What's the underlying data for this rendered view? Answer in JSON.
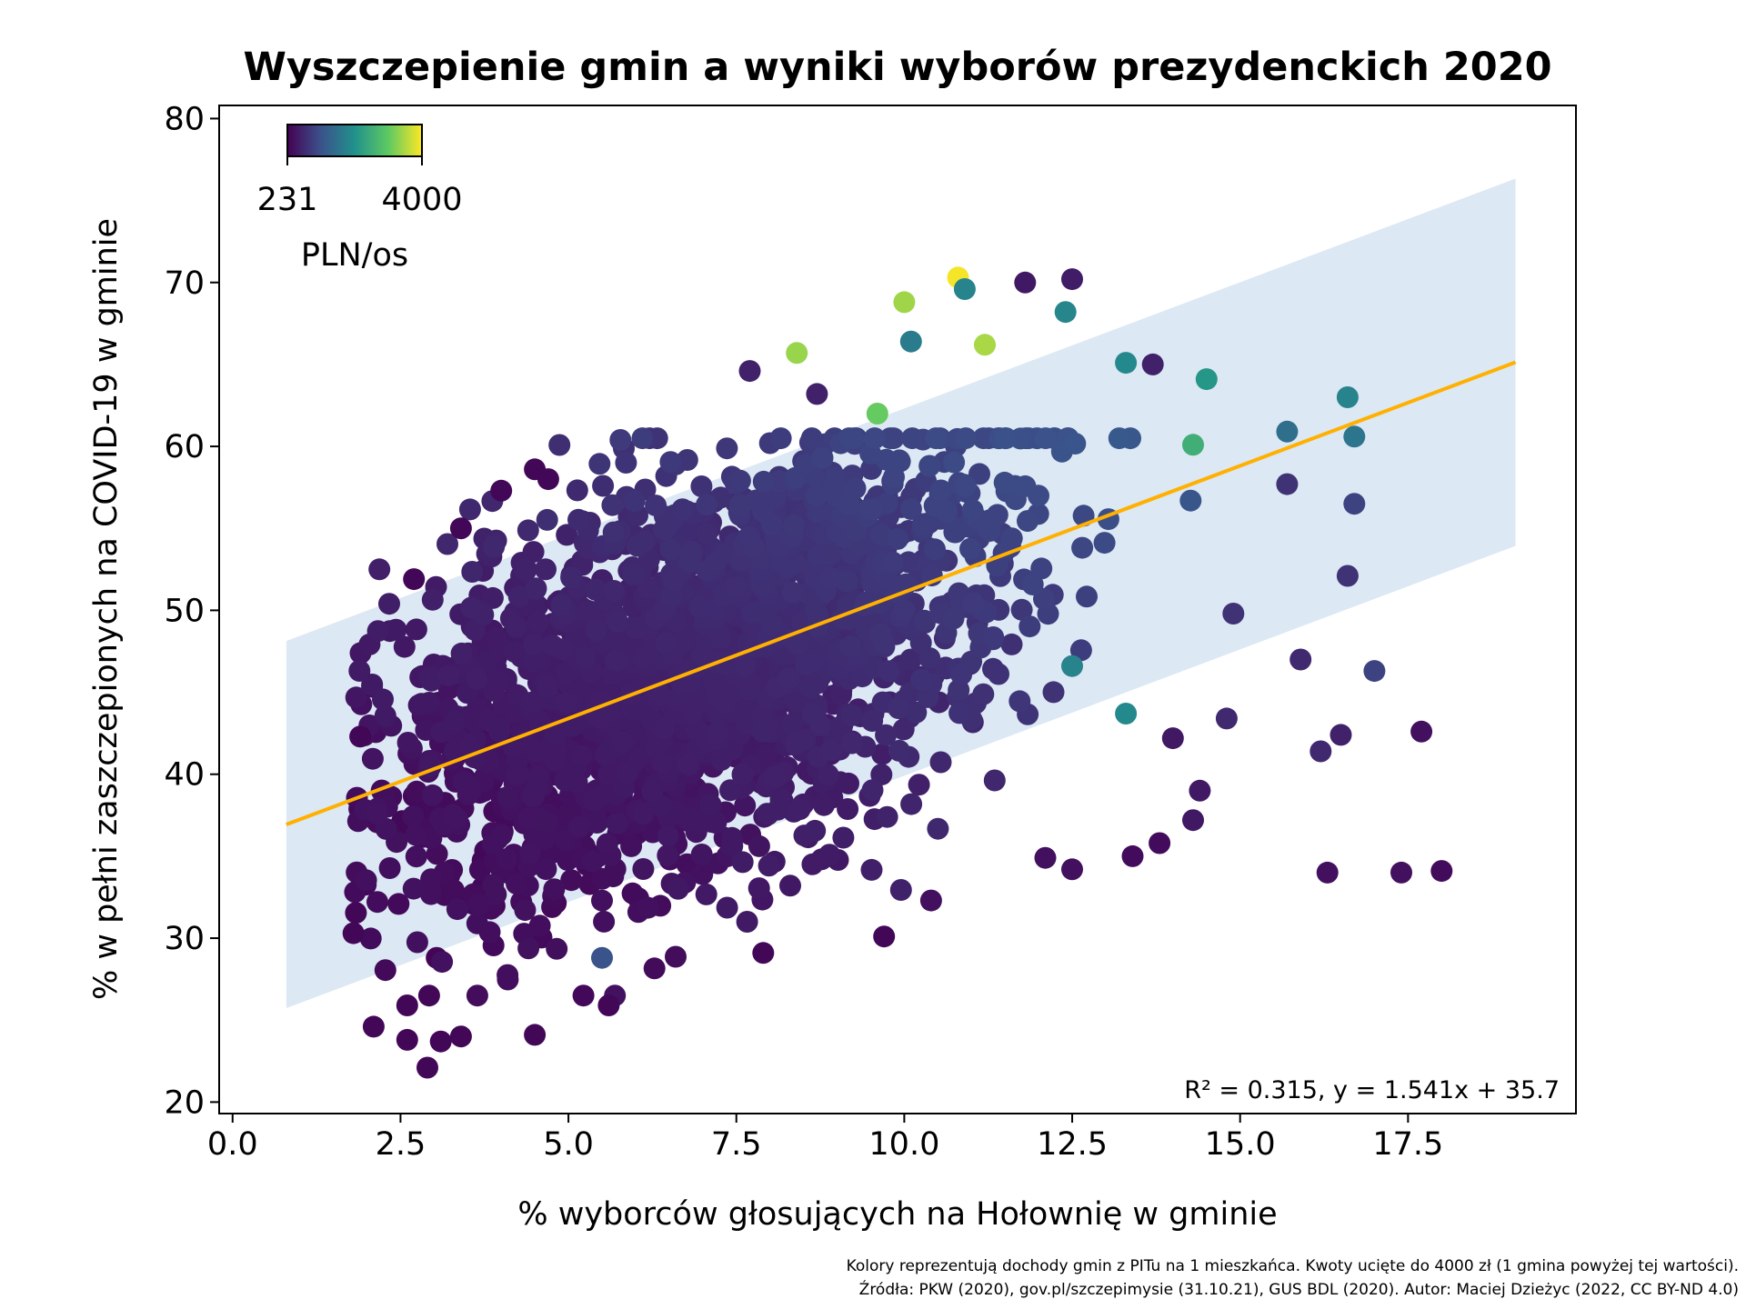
{
  "chart_data": {
    "type": "scatter",
    "title": "Wyszczepienie gmin a wyniki wyborów prezydenckich 2020",
    "xlabel": "% wyborców głosujących na Hołownię w gminie",
    "ylabel": "% w pełni zaszczepionych na COVID-19 w gminie",
    "xlim": [
      -0.2,
      20.0
    ],
    "ylim": [
      19.3,
      80.8
    ],
    "x_ticks": [
      "0.0",
      "2.5",
      "5.0",
      "7.5",
      "10.0",
      "12.5",
      "15.0",
      "17.5"
    ],
    "y_ticks": [
      "20",
      "30",
      "40",
      "50",
      "60",
      "70",
      "80"
    ],
    "grid": false,
    "colorbar": {
      "min_label": "231",
      "max_label": "4000",
      "unit": "PLN/os",
      "min": 231,
      "max": 4000,
      "colormap": "viridis",
      "placement": "top-left"
    },
    "regression": {
      "label": "R² = 0.315, y = 1.541x + 35.7",
      "slope": 1.541,
      "intercept": 35.7,
      "x_range": [
        0.8,
        19.1
      ],
      "band_halfwidth": 11.2,
      "line_color": "#FFB000",
      "band_color": "#DCE8F3"
    },
    "highlighted_points": [
      {
        "x": 10.8,
        "y": 70.3,
        "income": 3950
      },
      {
        "x": 10.0,
        "y": 68.8,
        "income": 3450
      },
      {
        "x": 8.4,
        "y": 65.7,
        "income": 3400
      },
      {
        "x": 11.2,
        "y": 66.2,
        "income": 3500
      },
      {
        "x": 9.6,
        "y": 62.0,
        "income": 3100
      },
      {
        "x": 10.9,
        "y": 69.6,
        "income": 1900
      },
      {
        "x": 10.1,
        "y": 66.4,
        "income": 1800
      },
      {
        "x": 12.4,
        "y": 68.2,
        "income": 1950
      },
      {
        "x": 11.8,
        "y": 70.0,
        "income": 500
      },
      {
        "x": 12.5,
        "y": 70.2,
        "income": 550
      },
      {
        "x": 13.3,
        "y": 65.1,
        "income": 2000
      },
      {
        "x": 13.7,
        "y": 65.0,
        "income": 600
      },
      {
        "x": 14.5,
        "y": 64.1,
        "income": 2200
      },
      {
        "x": 14.3,
        "y": 60.1,
        "income": 2600
      },
      {
        "x": 16.6,
        "y": 63.0,
        "income": 1900
      },
      {
        "x": 16.7,
        "y": 60.6,
        "income": 1700
      },
      {
        "x": 16.7,
        "y": 56.5,
        "income": 1000
      },
      {
        "x": 15.7,
        "y": 60.9,
        "income": 1600
      },
      {
        "x": 15.7,
        "y": 57.7,
        "income": 800
      },
      {
        "x": 16.6,
        "y": 52.1,
        "income": 800
      },
      {
        "x": 17.0,
        "y": 46.3,
        "income": 1000
      },
      {
        "x": 16.2,
        "y": 41.4,
        "income": 700
      },
      {
        "x": 16.5,
        "y": 42.4,
        "income": 600
      },
      {
        "x": 17.7,
        "y": 42.6,
        "income": 400
      },
      {
        "x": 16.3,
        "y": 34.0,
        "income": 400
      },
      {
        "x": 17.4,
        "y": 34.0,
        "income": 400
      },
      {
        "x": 18.0,
        "y": 34.1,
        "income": 350
      },
      {
        "x": 15.9,
        "y": 47.0,
        "income": 700
      },
      {
        "x": 14.9,
        "y": 49.8,
        "income": 800
      },
      {
        "x": 14.8,
        "y": 43.4,
        "income": 700
      },
      {
        "x": 14.3,
        "y": 37.2,
        "income": 500
      },
      {
        "x": 14.4,
        "y": 39.0,
        "income": 500
      },
      {
        "x": 13.8,
        "y": 35.8,
        "income": 350
      },
      {
        "x": 13.4,
        "y": 35.0,
        "income": 350
      },
      {
        "x": 14.0,
        "y": 42.2,
        "income": 500
      },
      {
        "x": 12.5,
        "y": 34.2,
        "income": 400
      },
      {
        "x": 12.1,
        "y": 34.9,
        "income": 400
      },
      {
        "x": 2.7,
        "y": 51.9,
        "income": 300
      },
      {
        "x": 3.4,
        "y": 55.0,
        "income": 300
      },
      {
        "x": 4.0,
        "y": 57.3,
        "income": 300
      },
      {
        "x": 4.5,
        "y": 58.6,
        "income": 300
      },
      {
        "x": 4.7,
        "y": 58.0,
        "income": 300
      },
      {
        "x": 7.7,
        "y": 64.6,
        "income": 600
      },
      {
        "x": 8.7,
        "y": 63.2,
        "income": 600
      },
      {
        "x": 1.9,
        "y": 42.3,
        "income": 300
      },
      {
        "x": 1.8,
        "y": 30.3,
        "income": 300
      },
      {
        "x": 2.1,
        "y": 24.6,
        "income": 300
      },
      {
        "x": 2.6,
        "y": 23.8,
        "income": 300
      },
      {
        "x": 2.9,
        "y": 22.1,
        "income": 300
      },
      {
        "x": 3.1,
        "y": 23.7,
        "income": 300
      },
      {
        "x": 3.4,
        "y": 24.0,
        "income": 300
      },
      {
        "x": 4.5,
        "y": 24.1,
        "income": 300
      },
      {
        "x": 2.6,
        "y": 25.9,
        "income": 300
      },
      {
        "x": 5.6,
        "y": 25.9,
        "income": 300
      },
      {
        "x": 7.9,
        "y": 29.1,
        "income": 300
      },
      {
        "x": 9.7,
        "y": 30.1,
        "income": 300
      },
      {
        "x": 10.4,
        "y": 32.3,
        "income": 400
      },
      {
        "x": 5.5,
        "y": 28.8,
        "income": 1200
      },
      {
        "x": 13.3,
        "y": 43.7,
        "income": 2000
      },
      {
        "x": 12.5,
        "y": 46.6,
        "income": 1900
      }
    ],
    "bulk_cloud": {
      "count": 2400,
      "x_mean": 6.8,
      "x_sd": 2.35,
      "x_range": [
        1.8,
        15.2
      ],
      "residual_sd": 5.6,
      "y_range": [
        26.5,
        60.5
      ]
    },
    "annotation": {
      "line1": "Kolory reprezentują dochody gmin z PITu na 1 mieszkańca. Kwoty ucięte do 4000 zł (1 gmina powyżej tej wartości).",
      "line2": "Źródła: PKW (2020), gov.pl/szczepimysie (31.10.21), GUS BDL (2020). Autor: Maciej Dzieżyc (2022, CC BY-ND 4.0)"
    }
  }
}
